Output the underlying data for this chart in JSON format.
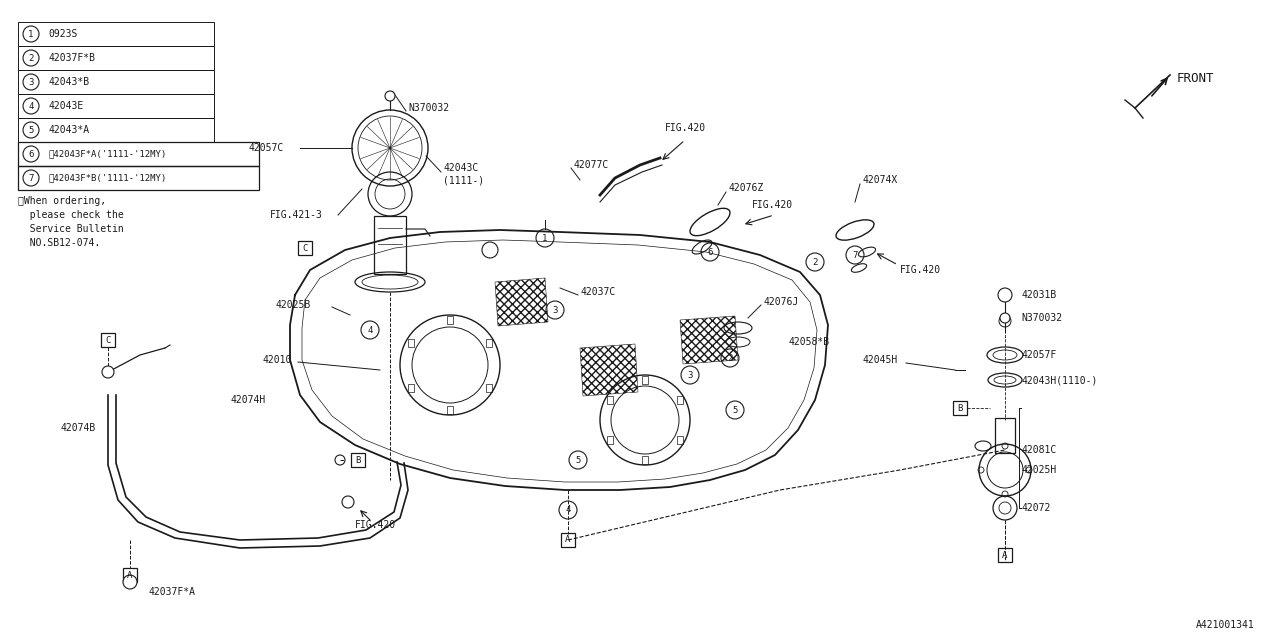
{
  "background_color": "#ffffff",
  "line_color": "#1a1a1a",
  "diagram_id": "A421001341",
  "legend_items": [
    {
      "num": "1",
      "code": "0923S",
      "boxed": false
    },
    {
      "num": "2",
      "code": "42037F*B",
      "boxed": false
    },
    {
      "num": "3",
      "code": "42043*B",
      "boxed": false
    },
    {
      "num": "4",
      "code": "42043E",
      "boxed": false
    },
    {
      "num": "5",
      "code": "42043*A",
      "boxed": false
    },
    {
      "num": "6",
      "code": "※42043F*A('1111-'12MY)",
      "boxed": true
    },
    {
      "num": "7",
      "code": "※42043F*B('1111-'12MY)",
      "boxed": true
    }
  ],
  "note_lines": [
    "※When ordering,",
    "  please check the",
    "  Service Bulletin",
    "  NO.SB12-074."
  ]
}
